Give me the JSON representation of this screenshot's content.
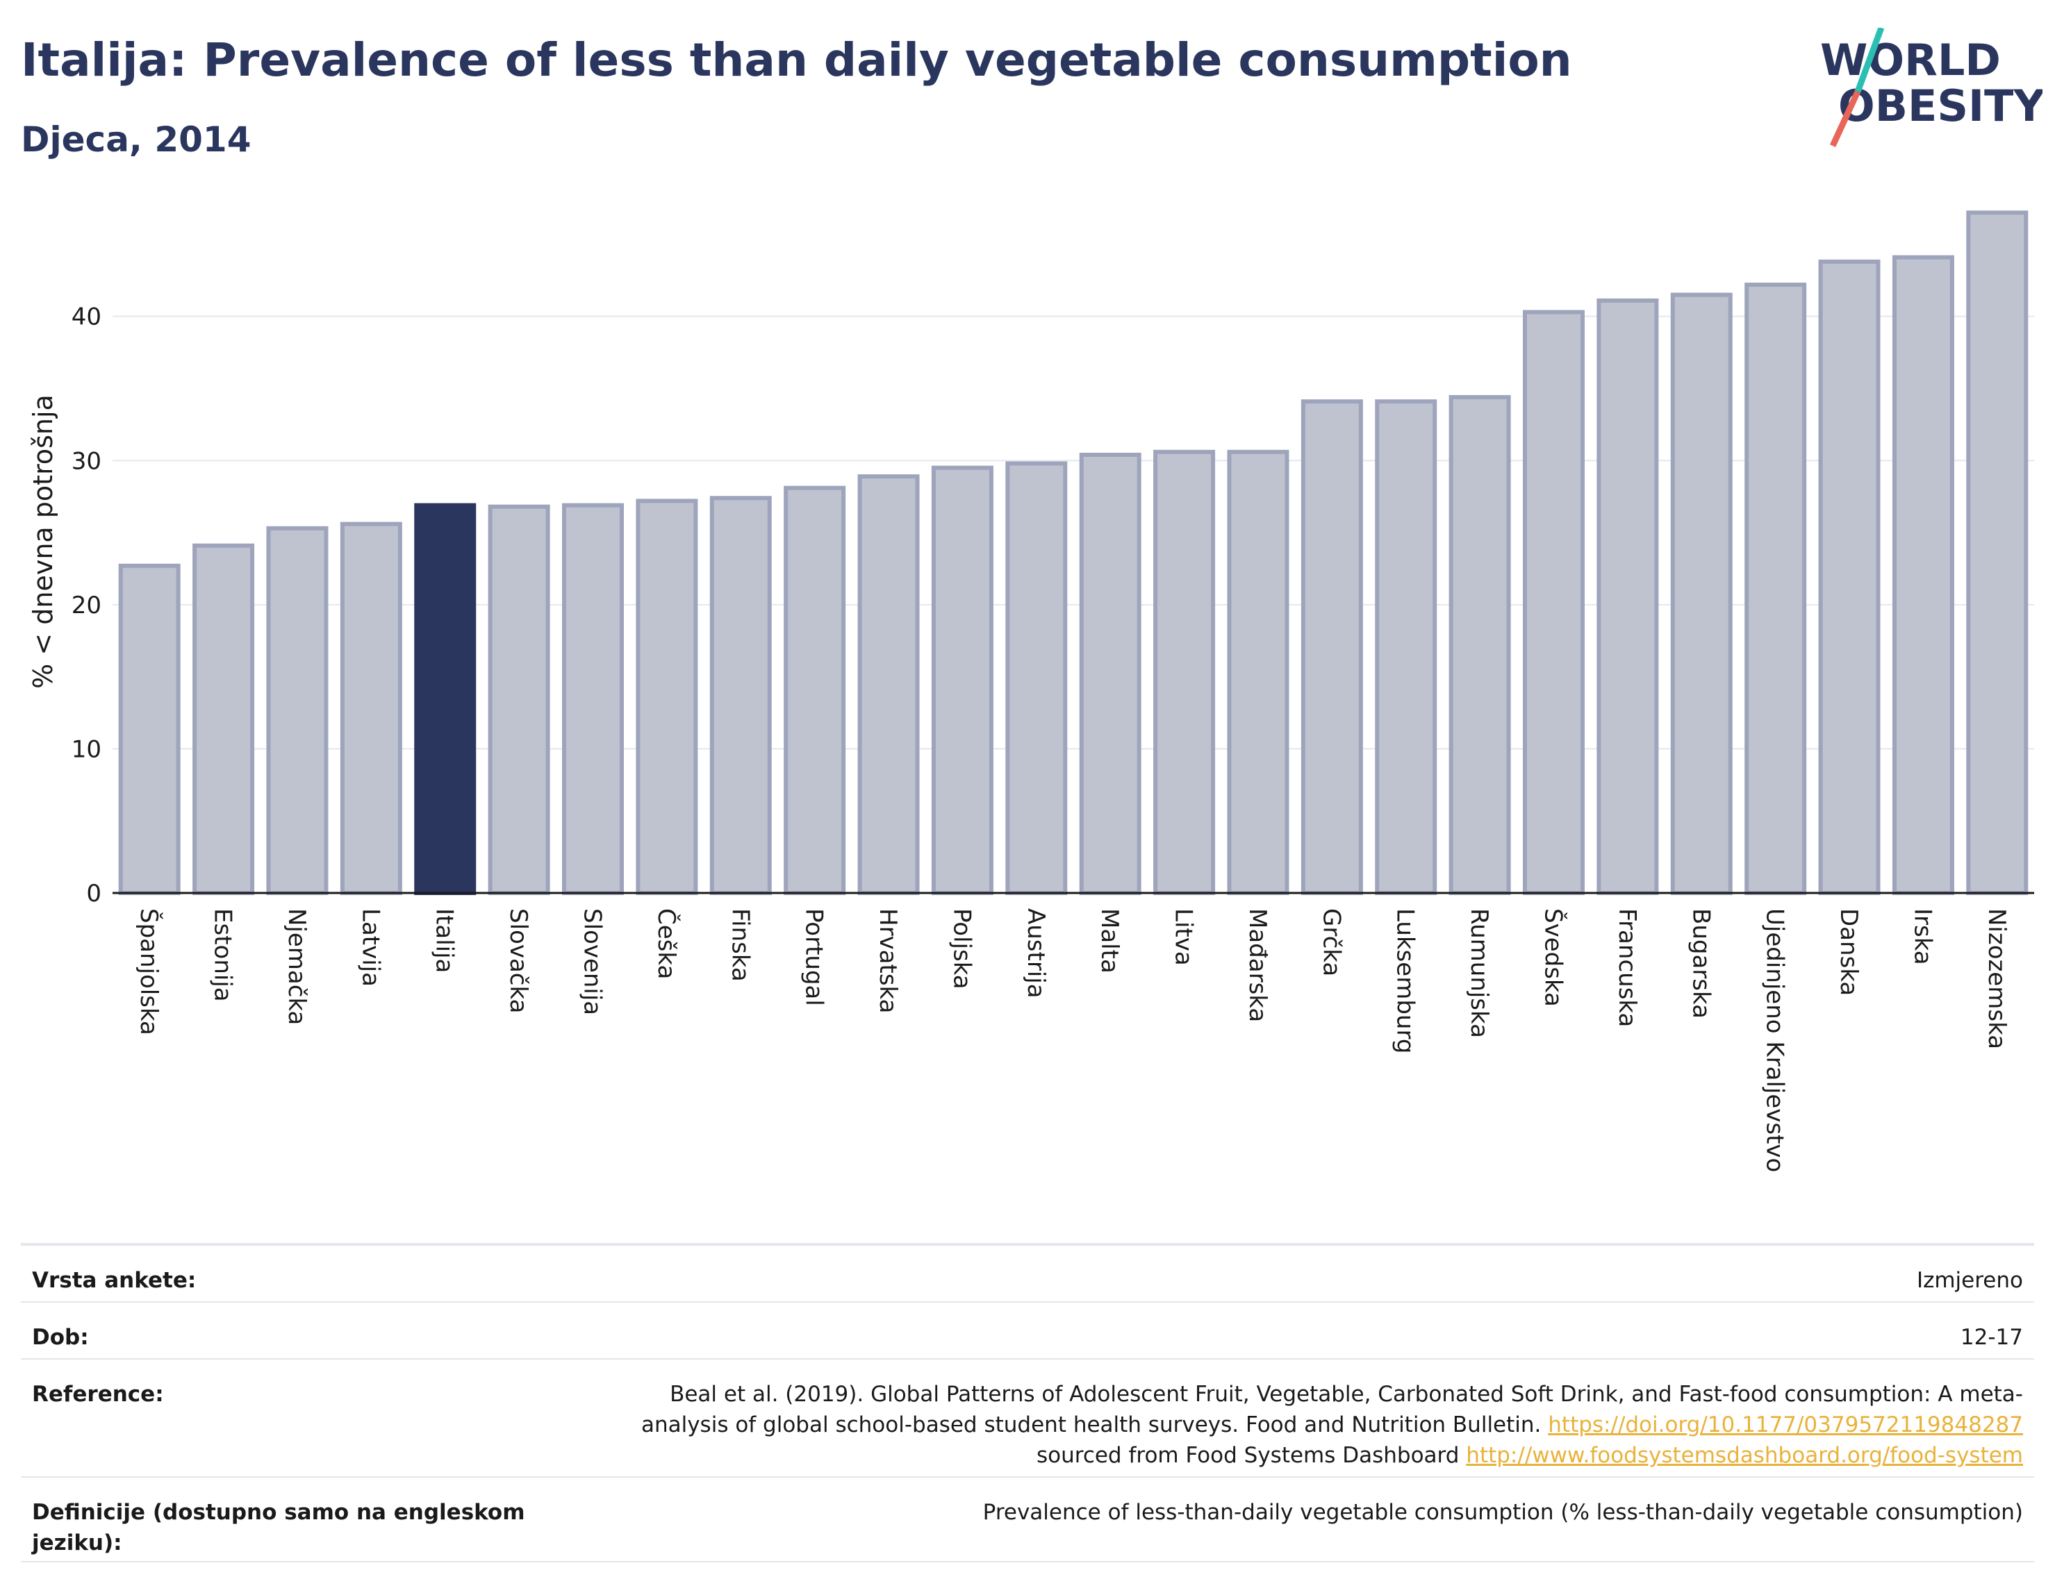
{
  "header": {
    "title": "Italija: Prevalence of less than daily vegetable consumption",
    "subtitle": "Djeca, 2014"
  },
  "logo": {
    "line1": "WORLD",
    "line2": "OBESITY",
    "colors": {
      "text": "#2b365e",
      "slash_top": "#2bbfb3",
      "slash_bottom": "#e8655a"
    }
  },
  "chart_data": {
    "type": "bar",
    "ylabel": "% < dnevna potrošnja",
    "xlabel": "",
    "ylim": [
      0,
      47.5
    ],
    "yticks": [
      0,
      10,
      20,
      30,
      40
    ],
    "grid": true,
    "highlight": "Italija",
    "colors": {
      "bar": "#bfc3d0",
      "bar_edge": "#9ea4bb",
      "highlight": "#2b365e"
    },
    "categories": [
      "Španjolska",
      "Estonija",
      "Njemačka",
      "Latvija",
      "Italija",
      "Slovačka",
      "Slovenija",
      "Češka",
      "Finska",
      "Portugal",
      "Hrvatska",
      "Poljska",
      "Austrija",
      "Malta",
      "Litva",
      "Mađarska",
      "Grčka",
      "Luksemburg",
      "Rumunjska",
      "Švedska",
      "Francuska",
      "Bugarska",
      "Ujedinjeno Kraljevstvo",
      "Danska",
      "Irska",
      "Nizozemska"
    ],
    "values": [
      22.7,
      24.1,
      25.3,
      25.6,
      26.9,
      26.8,
      26.9,
      27.2,
      27.4,
      28.1,
      28.9,
      29.5,
      29.8,
      30.4,
      30.6,
      30.6,
      34.1,
      34.1,
      34.4,
      40.3,
      41.1,
      41.5,
      42.2,
      43.8,
      44.1,
      47.2
    ]
  },
  "meta": {
    "rows": [
      {
        "label": "Vrsta ankete:",
        "value": "Izmjereno"
      },
      {
        "label": "Dob:",
        "value": "12-17"
      },
      {
        "label": "Reference:",
        "value_parts": [
          "Beal et al. (2019). Global Patterns of Adolescent Fruit, Vegetable, Carbonated Soft Drink, and Fast-food consumption: A meta-analysis of global school-based student health surveys. Food and Nutrition Bulletin. ",
          "https://doi.org/10.1177/0379572119848287",
          " sourced from Food Systems Dashboard ",
          "http://www.foodsystemsdashboard.org/food-system"
        ]
      },
      {
        "label": "Definicije (dostupno samo na engleskom jeziku):",
        "value": "Prevalence of less-than-daily vegetable consumption (% less-than-daily vegetable consumption)"
      }
    ]
  }
}
